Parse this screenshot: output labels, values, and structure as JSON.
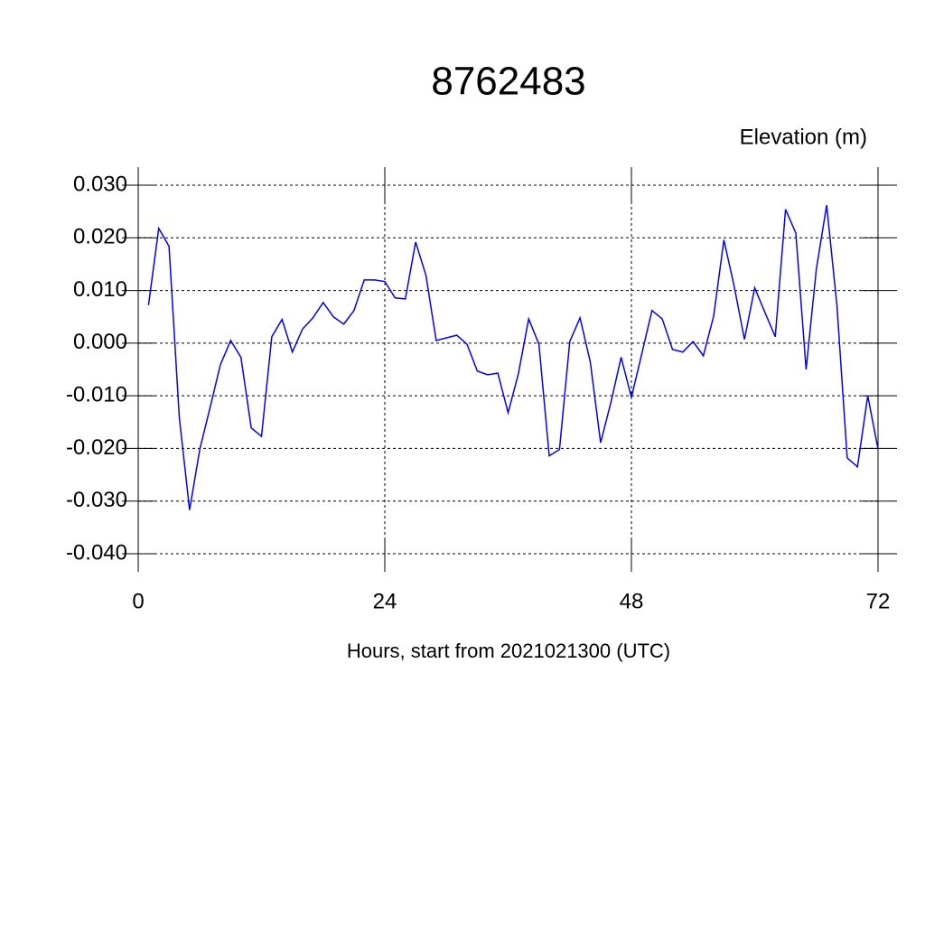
{
  "chart_data": {
    "type": "line",
    "title": "8762483",
    "subtitle": "Elevation (m)",
    "x_label": "Hours, start from 2021021300 (UTC)",
    "x": [
      1,
      2,
      3,
      4,
      5,
      6,
      7,
      8,
      9,
      10,
      11,
      12,
      13,
      14,
      15,
      16,
      17,
      18,
      19,
      20,
      21,
      22,
      23,
      24,
      25,
      26,
      27,
      28,
      29,
      30,
      31,
      32,
      33,
      34,
      35,
      36,
      37,
      38,
      39,
      40,
      41,
      42,
      43,
      44,
      45,
      46,
      47,
      48,
      49,
      50,
      51,
      52,
      53,
      54,
      55,
      56,
      57,
      58,
      59,
      60,
      61,
      62,
      63,
      64,
      65,
      66,
      67,
      68,
      69,
      70,
      71,
      72
    ],
    "series": [
      {
        "color": "#0000ff",
        "values": [
          0.0072,
          0.0218,
          0.0184,
          -0.0141,
          -0.0317,
          -0.0201,
          -0.0122,
          -0.0041,
          0.0005,
          -0.0027,
          -0.0161,
          -0.0177,
          0.0012,
          0.0045,
          -0.0017,
          0.0027,
          0.0048,
          0.0077,
          0.005,
          0.0036,
          0.0062,
          0.012,
          0.012,
          0.0117,
          0.0086,
          0.0084,
          0.0192,
          0.0129,
          0.0005,
          0.001,
          0.0015,
          -0.0002,
          -0.0053,
          -0.006,
          -0.0057,
          -0.0132,
          -0.0058,
          0.0046,
          -0.0002,
          -0.0214,
          -0.0202,
          0.0003,
          0.0048,
          -0.0036,
          -0.0189,
          -0.0113,
          -0.0027,
          -0.0103,
          -0.0021,
          0.0062,
          0.0046,
          -0.0012,
          -0.0017,
          0.0003,
          -0.0024,
          0.0051,
          0.0196,
          0.0108,
          0.0007,
          0.0105,
          0.0058,
          0.0012,
          0.0254,
          0.0209,
          -0.005,
          0.0141,
          0.0262,
          0.0072,
          -0.0218,
          -0.0235,
          -0.01,
          -0.0201
        ]
      }
    ],
    "xlim": [
      0,
      72
    ],
    "xticks": [
      0,
      24,
      48,
      72
    ],
    "ylim": [
      -0.04,
      0.03
    ],
    "yticks": [
      {
        "value": -0.04,
        "label": "-0.040"
      },
      {
        "value": -0.03,
        "label": "-0.030"
      },
      {
        "value": -0.02,
        "label": "-0.020"
      },
      {
        "value": -0.01,
        "label": "-0.010"
      },
      {
        "value": 0,
        "label": "0.000"
      },
      {
        "value": 0.01,
        "label": "0.010"
      },
      {
        "value": 0.02,
        "label": "0.020"
      },
      {
        "value": 0.03,
        "label": "0.030"
      }
    ],
    "grid": true
  }
}
